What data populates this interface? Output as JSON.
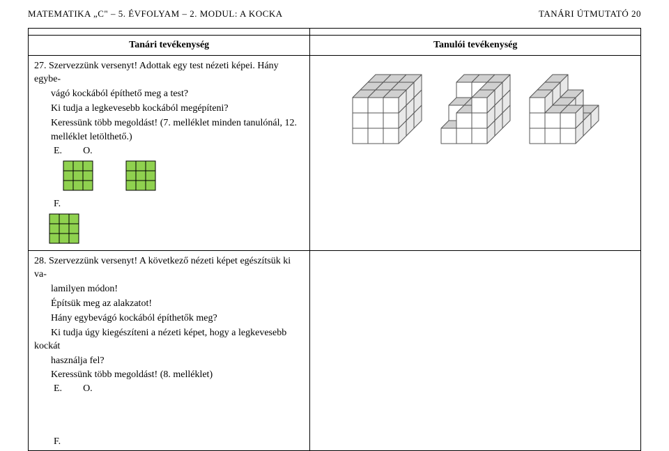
{
  "header": {
    "left": "MATEMATIKA „C\" – 5. ÉVFOLYAM – 2. MODUL: A KOCKA",
    "right": "TANÁRI ÚTMUTATÓ   20"
  },
  "table_headers": {
    "teacher": "Tanári tevékenység",
    "student": "Tanulói tevékenység"
  },
  "activity27": {
    "line1": "27. Szervezzünk versenyt! Adottak egy test nézeti képei. Hány egybe-",
    "line2": "vágó kockából építhető meg a test?",
    "line3": "Ki tudja a legkevesebb kockából megépíteni?",
    "line4": "Keressünk több megoldást! (7. melléklet minden tanulónál, 12.",
    "line5": "melléklet letölthető.)",
    "labelE": "E.",
    "labelO": "O.",
    "labelF": "F."
  },
  "activity28": {
    "line1": "28. Szervezzünk versenyt! A következő nézeti képet egészítsük ki va-",
    "line2": "lamilyen módon!",
    "line3": "Építsük meg az alakzatot!",
    "line4": "Hány egybevágó kockából építhetők meg?",
    "line5": "Ki tudja úgy kiegészíteni a nézeti képet, hogy a legkevesebb kockát",
    "line6": "használja fel?",
    "line7": "Keressünk több megoldást! (8. melléklet)",
    "labelE": "E.",
    "labelO": "O.",
    "labelF": "F."
  },
  "grid33": {
    "cell": 14,
    "fill": "#8fd14f",
    "stroke": "#000000",
    "strokeW": 1
  },
  "cubes": {
    "face_light": "#ffffff",
    "face_mid": "#e8e8e8",
    "face_dark": "#d0d0d0",
    "stroke": "#555555",
    "strokeW": 1,
    "cell": 22,
    "depth": 11
  }
}
